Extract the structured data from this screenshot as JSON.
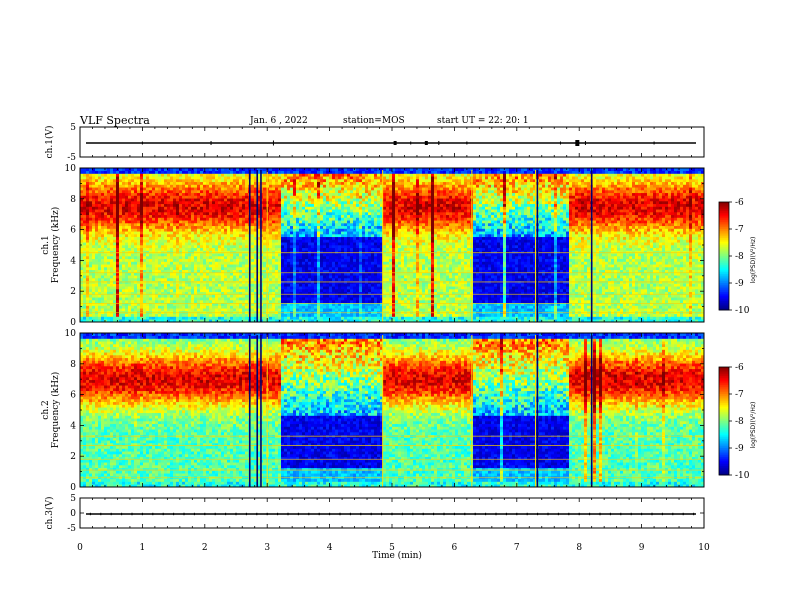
{
  "header": {
    "title": "VLF Spectra",
    "date": "Jan. 6 , 2022",
    "station": "station=MOS",
    "start": "start UT = 22: 20: 1"
  },
  "chart_data": [
    {
      "type": "line",
      "panel": "ch1-waveform",
      "ylabel": "ch.1(V)",
      "ylim": [
        -5,
        5
      ],
      "yticks": [
        "5",
        "-5"
      ],
      "xlim": [
        0,
        10
      ],
      "series": [
        {
          "values": [
            0,
            0
          ]
        }
      ]
    },
    {
      "type": "heatmap",
      "panel": "ch1-spectrogram",
      "ylabel": "ch.1 Frequency (kHz)",
      "ylim": [
        0,
        10
      ],
      "yticks": [
        "0",
        "2",
        "4",
        "6",
        "8",
        "10"
      ],
      "xlim": [
        0,
        10
      ],
      "quiet_intervals_min": [
        [
          3.2,
          4.85
        ],
        [
          6.3,
          7.85
        ]
      ],
      "colorbar": {
        "label": "log(PSD)(V²/Hz)",
        "range": [
          -10,
          -6
        ],
        "ticks": [
          "-6",
          "-7",
          "-8",
          "-9",
          "-10"
        ]
      }
    },
    {
      "type": "heatmap",
      "panel": "ch2-spectrogram",
      "ylabel": "ch.2 Frequency (kHz)",
      "ylim": [
        0,
        10
      ],
      "yticks": [
        "0",
        "2",
        "4",
        "6",
        "8",
        "10"
      ],
      "xlim": [
        0,
        10
      ],
      "quiet_intervals_min": [
        [
          3.2,
          4.85
        ],
        [
          6.3,
          7.85
        ]
      ],
      "colorbar": {
        "label": "log(PSD)(V²/Hz)",
        "range": [
          -10,
          -6
        ],
        "ticks": [
          "-6",
          "-7",
          "-8",
          "-9",
          "-10"
        ]
      }
    },
    {
      "type": "line",
      "panel": "ch3-waveform",
      "ylabel": "ch.3(V)",
      "ylim": [
        -5,
        5
      ],
      "yticks": [
        "5",
        "0",
        "-5"
      ],
      "xlim": [
        0,
        10
      ],
      "xlabel": "Time (min)",
      "xticks": [
        "0",
        "1",
        "2",
        "3",
        "4",
        "5",
        "6",
        "7",
        "8",
        "9",
        "10"
      ],
      "series": [
        {
          "values": [
            0,
            0
          ]
        }
      ]
    }
  ],
  "colors": {
    "jet_low": "#00007f",
    "jet_high": "#ff0000",
    "background": "#ffffff"
  }
}
